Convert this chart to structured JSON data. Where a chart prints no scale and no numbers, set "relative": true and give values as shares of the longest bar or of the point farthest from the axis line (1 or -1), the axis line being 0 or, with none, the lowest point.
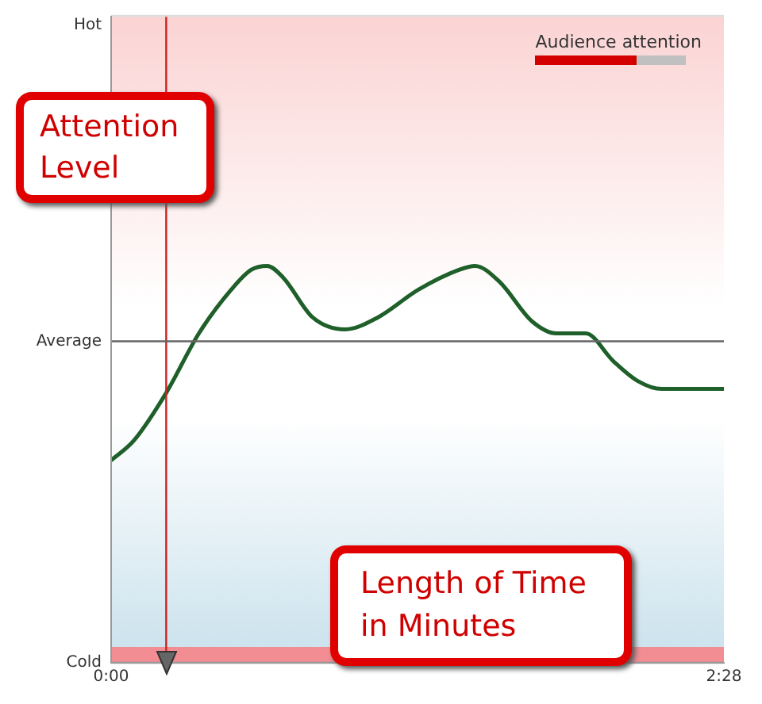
{
  "chart_data": {
    "type": "line",
    "relative": true,
    "legend_title": "Audience attention",
    "annotations": [
      "Attention Level",
      "Length of Time in Minutes"
    ],
    "x": [
      0,
      5.5,
      13.3,
      21.2,
      29,
      33.8,
      37.7,
      41.6,
      48.7,
      56.5,
      64.4,
      74.2,
      84,
      87.9,
      93.8,
      101.7,
      107.6,
      114.6,
      121.3,
      127.2,
      133,
      140.9,
      148
    ],
    "series": [
      {
        "color": "#1e5f2a",
        "values": [
          0.51,
          0.56,
          0.68,
          0.83,
          0.94,
          0.99,
          1,
          0.97,
          0.87,
          0.84,
          0.87,
          0.94,
          0.99,
          1,
          0.96,
          0.86,
          0.83,
          0.83,
          0.76,
          0.71,
          0.69,
          0.69,
          0.69
        ]
      }
    ],
    "xlim": [
      0,
      148
    ],
    "xticks": [
      {
        "value": 0,
        "label": "0:00"
      },
      {
        "value": 148,
        "label": "2:28"
      }
    ],
    "ref_lines": [
      {
        "axis": "x",
        "value": 13.3,
        "color": "#cc2222"
      },
      {
        "axis": "y",
        "value": 0.81,
        "label": "Average",
        "color": "#666666"
      },
      {
        "axis": "y",
        "value": 1.63,
        "label": "Hot",
        "color": "#dddddd"
      },
      {
        "axis": "y",
        "value": 0,
        "label": "Cold",
        "color": "#999999"
      }
    ],
    "bands": [
      {
        "axis": "y",
        "from": 0,
        "to": 0.04,
        "color": "#f28d93"
      }
    ],
    "marker": "none",
    "line_style": "solid"
  }
}
